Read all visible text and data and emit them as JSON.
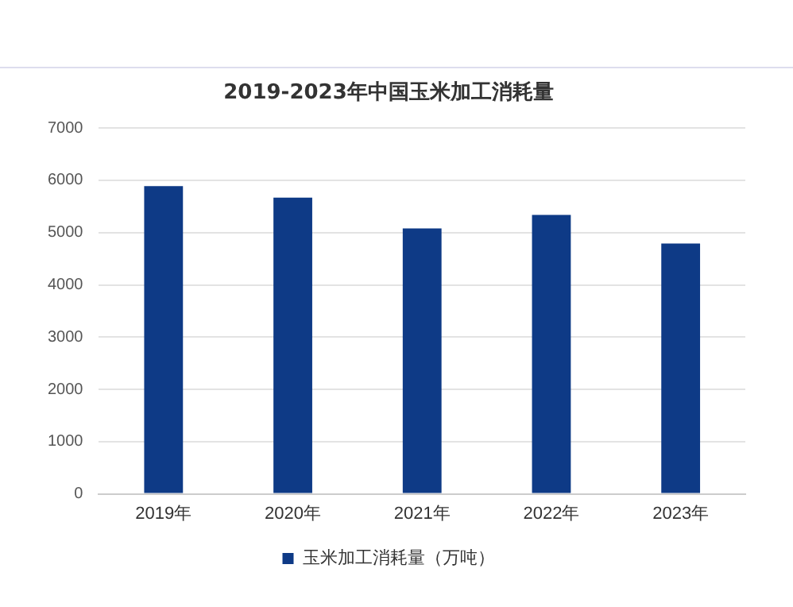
{
  "chart_data": {
    "type": "bar",
    "title": "2019-2023年中国玉米加工消耗量",
    "categories": [
      "2019年",
      "2020年",
      "2021年",
      "2022年",
      "2023年"
    ],
    "series": [
      {
        "name": "玉米加工消耗量（万吨）",
        "color": "#0e3a86",
        "values": [
          5890,
          5670,
          5080,
          5340,
          4790
        ]
      }
    ],
    "ylim": [
      0,
      7000
    ],
    "yticks": [
      0,
      1000,
      2000,
      3000,
      4000,
      5000,
      6000,
      7000
    ],
    "grid": "y",
    "legend": "bottom"
  }
}
